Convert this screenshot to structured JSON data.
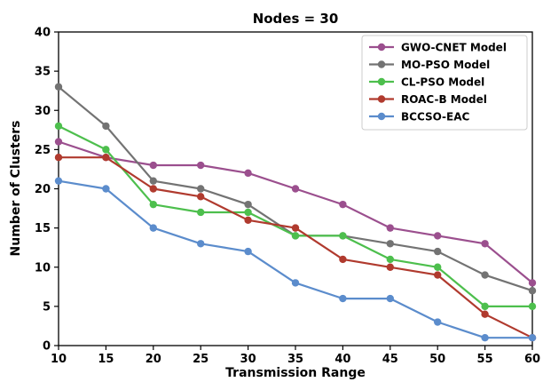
{
  "chart_data": {
    "type": "line",
    "title": "Nodes = 30",
    "xlabel": "Transmission Range",
    "ylabel": "Number of Clusters",
    "x": [
      10,
      15,
      20,
      25,
      30,
      35,
      40,
      45,
      50,
      55,
      60
    ],
    "xlim": [
      10,
      60
    ],
    "ylim": [
      0,
      40
    ],
    "xticks": [
      10,
      15,
      20,
      25,
      30,
      35,
      40,
      45,
      50,
      55,
      60
    ],
    "yticks": [
      0,
      5,
      10,
      15,
      20,
      25,
      30,
      35,
      40
    ],
    "grid": false,
    "legend_position": "top-right",
    "series": [
      {
        "name": "GWO-CNET Model",
        "color": "#9b4f8e",
        "values": [
          26,
          24,
          23,
          23,
          22,
          20,
          18,
          15,
          14,
          13,
          8
        ]
      },
      {
        "name": "MO-PSO Model",
        "color": "#737373",
        "values": [
          33,
          28,
          21,
          20,
          18,
          14,
          14,
          13,
          12,
          9,
          7
        ]
      },
      {
        "name": "CL-PSO Model",
        "color": "#4dbf4d",
        "values": [
          28,
          25,
          18,
          17,
          17,
          14,
          14,
          11,
          10,
          5,
          5
        ]
      },
      {
        "name": "ROAC-B Model",
        "color": "#b03a2e",
        "values": [
          24,
          24,
          20,
          19,
          16,
          15,
          11,
          10,
          9,
          4,
          1
        ]
      },
      {
        "name": "BCCSO-EAC",
        "color": "#5b8ccc",
        "values": [
          21,
          20,
          15,
          13,
          12,
          8,
          6,
          6,
          3,
          1,
          1
        ]
      }
    ]
  }
}
